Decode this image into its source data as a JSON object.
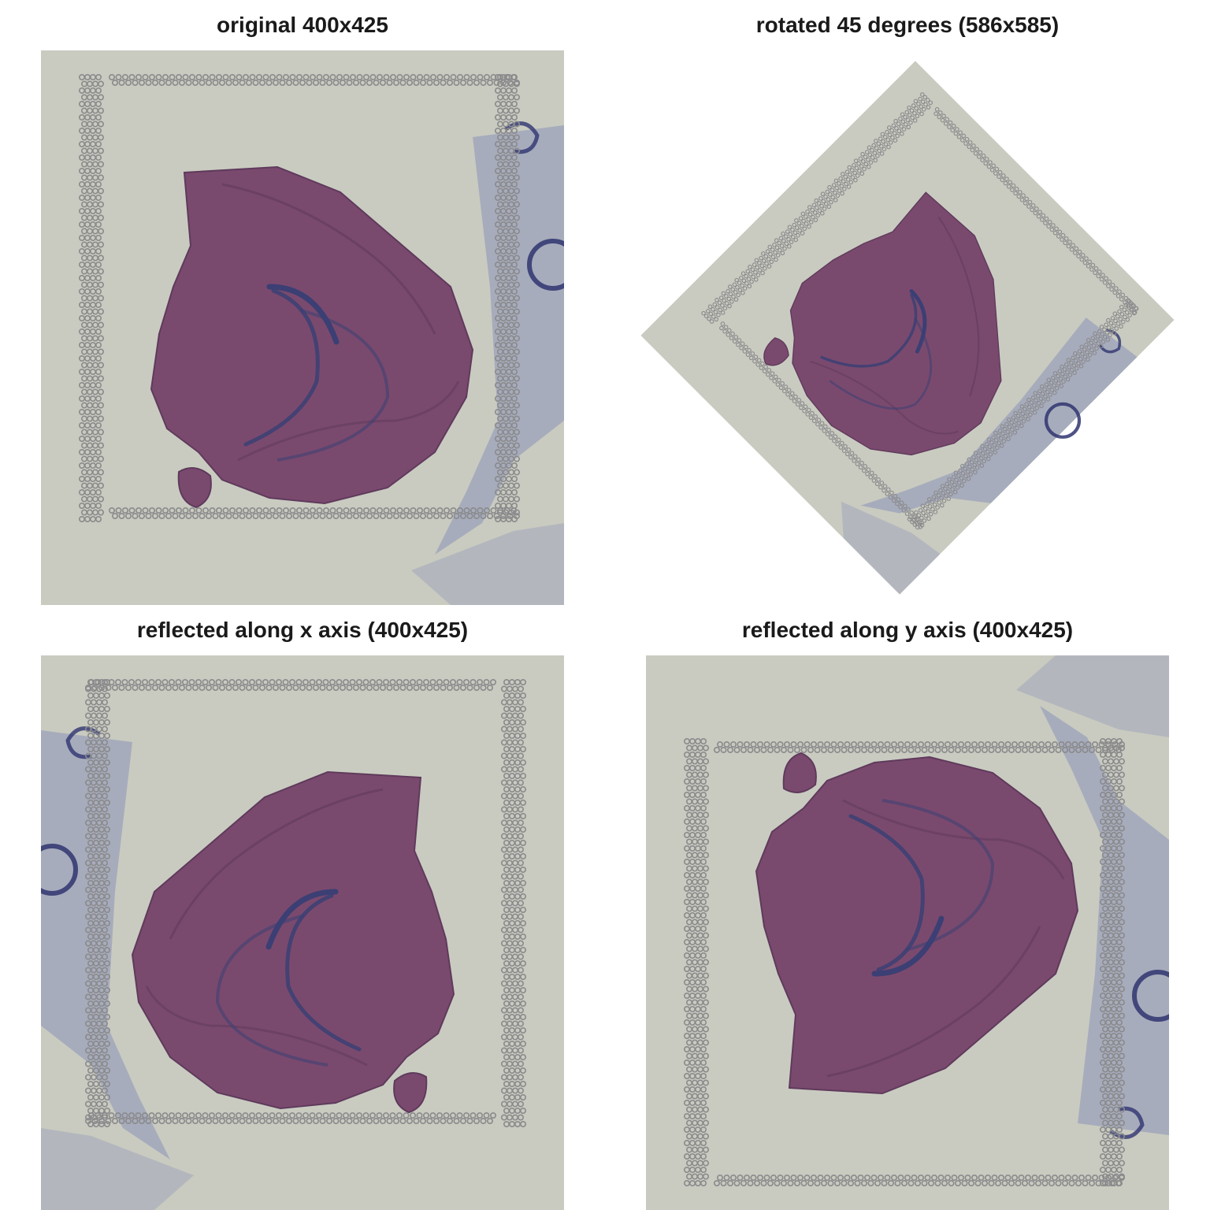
{
  "panels": [
    {
      "title": "original 400x425",
      "transform": "original",
      "width": 400,
      "height": 425
    },
    {
      "title": "rotated 45 degrees (586x585)",
      "transform": "rotate45",
      "width": 586,
      "height": 585
    },
    {
      "title": "reflected along x axis (400x425)",
      "transform": "reflect-x",
      "width": 400,
      "height": 425
    },
    {
      "title": "reflected along y axis (400x425)",
      "transform": "reflect-y",
      "width": 400,
      "height": 425
    }
  ],
  "colors": {
    "slide_background": "#c9cbc0",
    "fiducial_spot": "#8a8a8c",
    "tissue": "#7a4a6e",
    "tissue_dark": "#5f3a5c",
    "hippocampus_stain": "#3b3f74",
    "blue_smear": "#8a93b8",
    "ring_mark": "#2f3470"
  }
}
